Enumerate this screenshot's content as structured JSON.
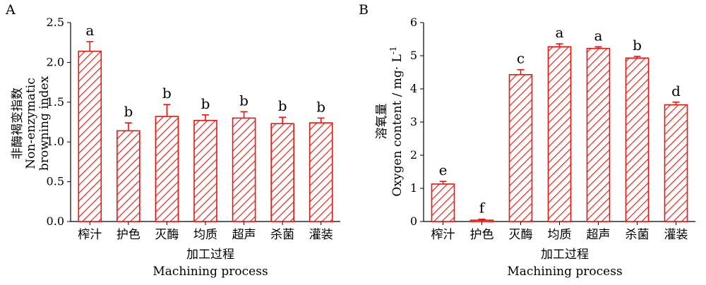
{
  "panels": [
    {
      "panel_label": "A",
      "ylabel_cn": "非酶褐变指数",
      "ylabel_en_line1": "Non-enzymatic",
      "ylabel_en_line2": "browning index",
      "xlabel_cn": "加工过程",
      "xlabel_en": "Machining process"
    },
    {
      "panel_label": "B",
      "ylabel_cn": "溶氧量",
      "ylabel_en": "Oxygen content / mg· L",
      "ylabel_en_sup": "-1",
      "xlabel_cn": "加工过程",
      "xlabel_en": "Machining process"
    }
  ],
  "chart_data": [
    {
      "type": "bar",
      "categories": [
        "榨汁",
        "护色",
        "灭酶",
        "均质",
        "超声",
        "杀菌",
        "灌装"
      ],
      "values": [
        2.14,
        1.14,
        1.32,
        1.27,
        1.3,
        1.23,
        1.24
      ],
      "errors": [
        0.12,
        0.1,
        0.15,
        0.07,
        0.08,
        0.08,
        0.06
      ],
      "significance": [
        "a",
        "b",
        "b",
        "b",
        "b",
        "b",
        "b"
      ],
      "ylim": [
        0,
        2.5
      ],
      "yticks": [
        "0.0",
        "0.5",
        "1.0",
        "1.5",
        "2.0",
        "2.5"
      ],
      "bar_color": "#e8140e",
      "bar_fill": "diagonal-hatch",
      "grid": false
    },
    {
      "type": "bar",
      "categories": [
        "榨汁",
        "护色",
        "灭酶",
        "均质",
        "超声",
        "杀菌",
        "灌装"
      ],
      "values": [
        1.13,
        0.04,
        4.43,
        5.27,
        5.22,
        4.93,
        3.52
      ],
      "errors": [
        0.08,
        0.03,
        0.15,
        0.09,
        0.05,
        0.05,
        0.08
      ],
      "significance": [
        "e",
        "f",
        "c",
        "a",
        "a",
        "b",
        "d"
      ],
      "ylim": [
        0,
        6
      ],
      "yticks": [
        "0",
        "1",
        "2",
        "3",
        "4",
        "5",
        "6"
      ],
      "bar_color": "#e8140e",
      "bar_fill": "diagonal-hatch",
      "grid": false
    }
  ]
}
